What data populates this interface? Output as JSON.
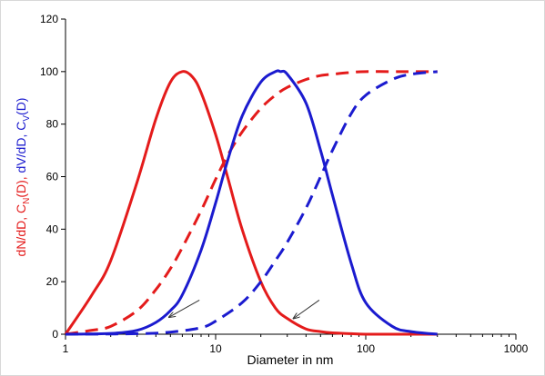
{
  "chart_data": {
    "type": "line",
    "xlabel": "Diameter in nm",
    "xscale": "log",
    "xlim": [
      1,
      1000
    ],
    "ylim": [
      0,
      120
    ],
    "x_ticks": [
      "1",
      "10",
      "100",
      "1000"
    ],
    "y_ticks": [
      "0",
      "20",
      "40",
      "60",
      "80",
      "100",
      "120"
    ],
    "ylabel_parts": [
      {
        "text": "dN/dD, C",
        "color": "#e41b1b",
        "sub": false
      },
      {
        "text": "N",
        "color": "#e41b1b",
        "sub": true
      },
      {
        "text": "(D), ",
        "color": "#e41b1b",
        "sub": false
      },
      {
        "text": "dV/dD, C",
        "color": "#1b1bcf",
        "sub": false
      },
      {
        "text": "V",
        "color": "#1b1bcf",
        "sub": true
      },
      {
        "text": "(D)",
        "color": "#1b1bcf",
        "sub": false
      }
    ],
    "grid": false,
    "series": [
      {
        "color": "#e41b1b",
        "style": "solid",
        "x": [
          1,
          1.5,
          2,
          3,
          4,
          5,
          6,
          7,
          8,
          10,
          12,
          15,
          20,
          25,
          30,
          40,
          50,
          60,
          80,
          100,
          150,
          200,
          300
        ],
        "y": [
          0,
          15,
          28,
          58,
          82,
          96,
          100,
          98,
          92,
          76,
          60,
          40,
          20,
          10,
          6,
          2,
          1,
          0.5,
          0.2,
          0,
          0,
          0,
          0
        ]
      },
      {
        "color": "#e41b1b",
        "style": "dashed",
        "x": [
          1,
          1.5,
          2,
          3,
          4,
          5,
          6,
          8,
          10,
          12,
          15,
          20,
          25,
          30,
          40,
          50,
          60,
          80,
          100,
          150,
          200,
          300
        ],
        "y": [
          0,
          1.5,
          3,
          9,
          17,
          25,
          33,
          47,
          59,
          68,
          77,
          86,
          91,
          94,
          97,
          98.5,
          99,
          99.7,
          100,
          100,
          100,
          100
        ]
      },
      {
        "color": "#1b1bcf",
        "style": "solid",
        "x": [
          1,
          2,
          3,
          4,
          5,
          6,
          8,
          10,
          12,
          15,
          20,
          25,
          27,
          30,
          40,
          50,
          60,
          80,
          100,
          150,
          200,
          300
        ],
        "y": [
          0,
          0.3,
          1.5,
          4.5,
          9,
          15,
          32,
          50,
          66,
          83,
          96,
          100,
          100,
          99,
          88,
          70,
          53,
          27,
          12,
          3,
          1,
          0
        ]
      },
      {
        "color": "#1b1bcf",
        "style": "dashed",
        "x": [
          1,
          3,
          5,
          8,
          10,
          15,
          20,
          25,
          30,
          40,
          50,
          60,
          80,
          100,
          150,
          200,
          300
        ],
        "y": [
          0,
          0.2,
          0.8,
          2.5,
          5,
          12,
          20,
          28,
          35,
          48,
          60,
          70,
          84,
          91,
          97,
          99,
          100
        ]
      }
    ],
    "arrows": [
      {
        "from": [
          7.8,
          13
        ],
        "to": [
          4.9,
          6.5
        ]
      },
      {
        "from": [
          49,
          13
        ],
        "to": [
          33,
          6
        ]
      }
    ]
  }
}
